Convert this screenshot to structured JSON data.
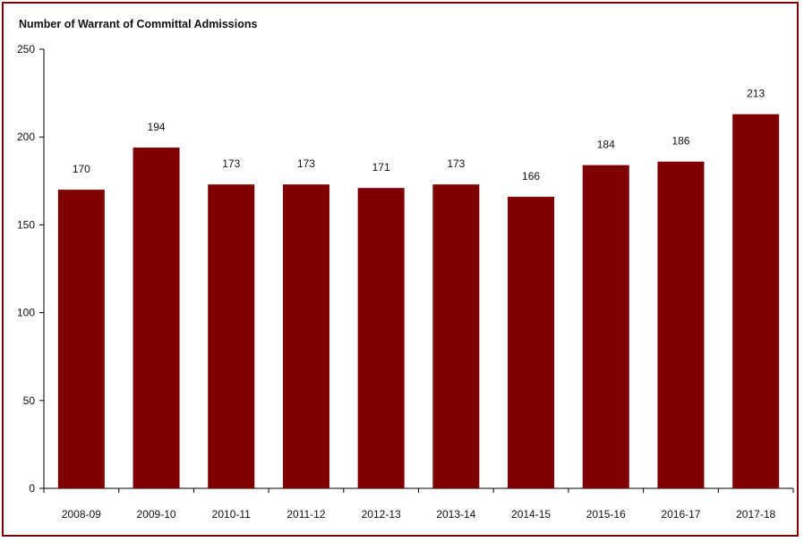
{
  "chart_data": {
    "type": "bar",
    "title": "Number of Warrant of Committal Admissions",
    "xlabel": "",
    "ylabel": "",
    "categories": [
      "2008-09",
      "2009-10",
      "2010-11",
      "2011-12",
      "2012-13",
      "2013-14",
      "2014-15",
      "2015-16",
      "2016-17",
      "2017-18"
    ],
    "values": [
      170,
      194,
      173,
      173,
      171,
      173,
      166,
      184,
      186,
      213
    ],
    "ylim": [
      0,
      250
    ],
    "yticks": [
      0,
      50,
      100,
      150,
      200,
      250
    ],
    "grid": false,
    "bar_color": "#7f0000",
    "frame_color": "#7f0000"
  }
}
